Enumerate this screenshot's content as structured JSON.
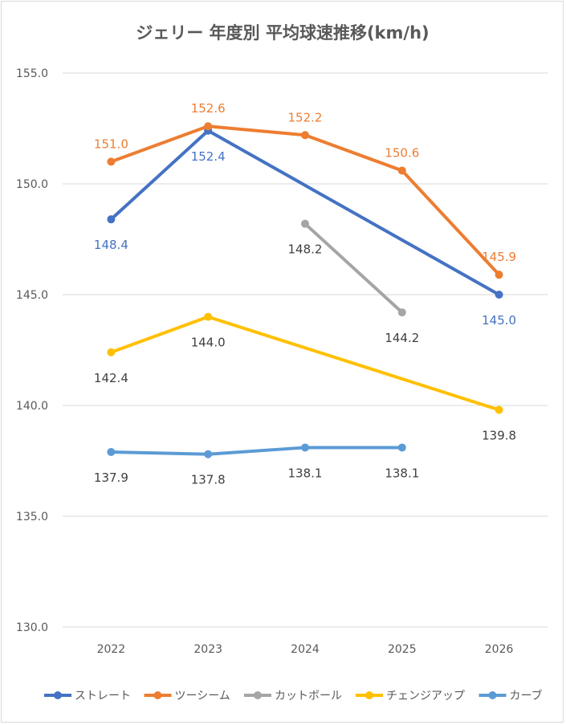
{
  "chart_data": {
    "type": "line",
    "title": "ジェリー 年度別 平均球速推移(km/h)",
    "xlabel": "",
    "ylabel": "",
    "categories": [
      "2022",
      "2023",
      "2024",
      "2025",
      "2026"
    ],
    "ylim": [
      130,
      155
    ],
    "yticks": [
      "130.0",
      "135.0",
      "140.0",
      "145.0",
      "150.0",
      "155.0"
    ],
    "grid": true,
    "legend_position": "bottom",
    "series": [
      {
        "name": "ストレート",
        "color": "#4472C4",
        "label_color": "#4472C4",
        "label_pos": "below",
        "values": [
          148.4,
          152.4,
          null,
          null,
          145.0
        ]
      },
      {
        "name": "ツーシーム",
        "color": "#ED7D31",
        "label_color": "#ED7D31",
        "label_pos": "above",
        "values": [
          151.0,
          152.6,
          152.2,
          150.6,
          145.9
        ]
      },
      {
        "name": "カットボール",
        "color": "#A5A5A5",
        "label_color": "#404040",
        "label_pos": "below",
        "values": [
          null,
          null,
          148.2,
          144.2,
          null
        ]
      },
      {
        "name": "チェンジアップ",
        "color": "#FFC000",
        "label_color": "#404040",
        "label_pos": "below",
        "values": [
          142.4,
          144.0,
          null,
          null,
          139.8
        ]
      },
      {
        "name": "カーブ",
        "color": "#5B9BD5",
        "label_color": "#404040",
        "label_pos": "below",
        "values": [
          137.9,
          137.8,
          138.1,
          138.1,
          null
        ]
      }
    ]
  }
}
